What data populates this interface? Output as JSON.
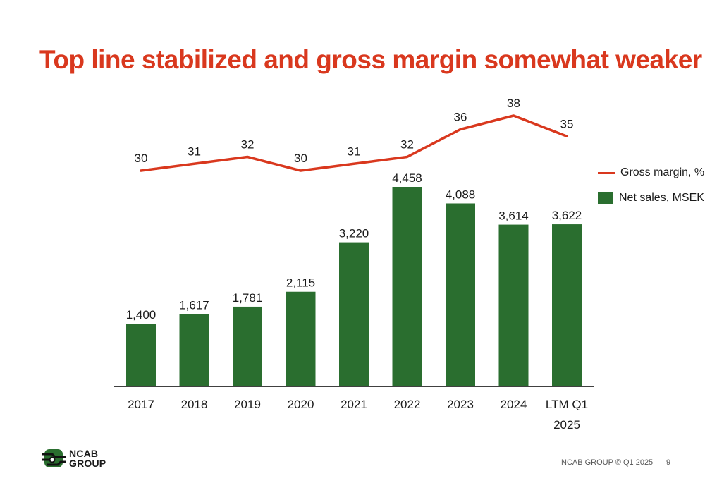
{
  "title": "Top line stabilized and gross margin somewhat weaker",
  "colors": {
    "title": "#d9381e",
    "bar": "#2a6e2f",
    "line": "#d9381e",
    "axis": "#000000"
  },
  "chart_data": {
    "type": "bar",
    "categories": [
      [
        "2017"
      ],
      [
        "2018"
      ],
      [
        "2019"
      ],
      [
        "2020"
      ],
      [
        "2021"
      ],
      [
        "2022"
      ],
      [
        "2023"
      ],
      [
        "2024"
      ],
      [
        "LTM Q1",
        "2025"
      ]
    ],
    "series": [
      {
        "name": "Net sales, MSEK",
        "kind": "bar",
        "values": [
          1400,
          1617,
          1781,
          2115,
          3220,
          4458,
          4088,
          3614,
          3622
        ],
        "labels": [
          "1,400",
          "1,617",
          "1,781",
          "2,115",
          "3,220",
          "4,458",
          "4,088",
          "3,614",
          "3,622"
        ]
      },
      {
        "name": "Gross margin, %",
        "kind": "line",
        "values": [
          30,
          31,
          32,
          30,
          31,
          32,
          36,
          38,
          35
        ],
        "labels": [
          "30",
          "31",
          "32",
          "30",
          "31",
          "32",
          "36",
          "38",
          "35"
        ]
      }
    ],
    "legend_position": "right",
    "grid": false
  },
  "legend": [
    {
      "label": "Gross margin, %",
      "kind": "line"
    },
    {
      "label": "Net sales, MSEK",
      "kind": "bar"
    }
  ],
  "logo": {
    "line1": "NCAB",
    "line2": "GROUP"
  },
  "footer": {
    "text": "NCAB GROUP © Q1 2025",
    "page": "9"
  }
}
